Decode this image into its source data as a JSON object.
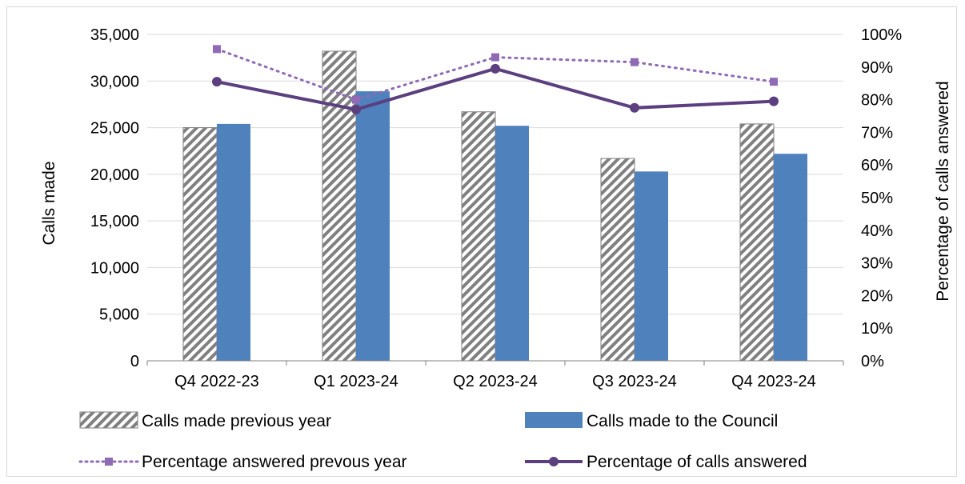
{
  "chart_data": {
    "type": "bar",
    "categories": [
      "Q4 2022-23",
      "Q1 2023-24",
      "Q2 2023-24",
      "Q3 2023-24",
      "Q4 2023-24"
    ],
    "series": [
      {
        "name": "Calls made previous year",
        "kind": "bar",
        "axis": "left",
        "pattern": "diagonal-hatch",
        "color": "#808080",
        "values": [
          25000,
          33200,
          26700,
          21700,
          25400
        ]
      },
      {
        "name": "Calls made to the Council",
        "kind": "bar",
        "axis": "left",
        "color": "#4f81bd",
        "values": [
          25400,
          28900,
          25200,
          20300,
          22200
        ]
      },
      {
        "name": "Percentage answered prevous year",
        "kind": "line",
        "axis": "right",
        "style": "dotted",
        "marker": "square",
        "color": "#8f6bb5",
        "values": [
          95.5,
          80,
          93,
          91.5,
          85.5
        ]
      },
      {
        "name": "Percentage of calls answered",
        "kind": "line",
        "axis": "right",
        "style": "solid",
        "marker": "circle",
        "color": "#5b3f7f",
        "values": [
          85.5,
          77,
          89.5,
          77.5,
          79.5
        ]
      }
    ],
    "ylabel": "Calls made",
    "y2label": "Percentage of calls answered",
    "ylim": [
      0,
      35000
    ],
    "y2lim": [
      0,
      100
    ],
    "y_ticks": [
      "0",
      "5,000",
      "10,000",
      "15,000",
      "20,000",
      "25,000",
      "30,000",
      "35,000"
    ],
    "y2_ticks": [
      "0%",
      "10%",
      "20%",
      "30%",
      "40%",
      "50%",
      "60%",
      "70%",
      "80%",
      "90%",
      "100%"
    ],
    "grid": true,
    "legend_position": "bottom"
  }
}
